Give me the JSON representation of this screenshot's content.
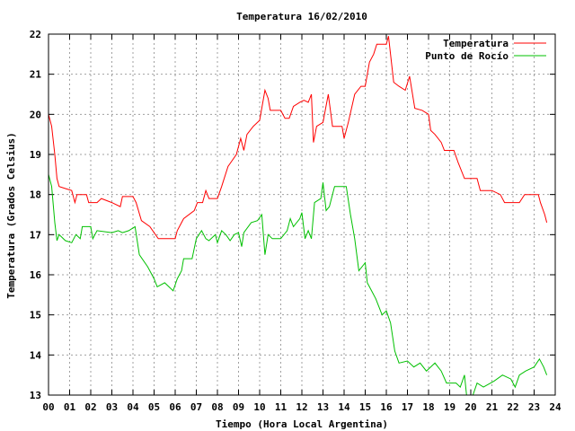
{
  "chart_data": {
    "type": "line",
    "title": "Temperatura 16/02/2010",
    "xlabel": "Tiempo (Hora Local Argentina)",
    "ylabel": "Temperatura (Grados Celsius)",
    "xlim": [
      0,
      24
    ],
    "ylim": [
      13,
      22
    ],
    "x_ticks": [
      "00",
      "01",
      "02",
      "03",
      "04",
      "05",
      "06",
      "07",
      "08",
      "09",
      "10",
      "11",
      "12",
      "13",
      "14",
      "15",
      "16",
      "17",
      "18",
      "19",
      "20",
      "21",
      "22",
      "23",
      "24"
    ],
    "y_ticks": [
      "13",
      "14",
      "15",
      "16",
      "17",
      "18",
      "19",
      "20",
      "21",
      "22"
    ],
    "grid": true,
    "legend_position": "top-right",
    "series": [
      {
        "name": "Temperatura",
        "color": "#ff0000",
        "points": [
          [
            0.0,
            20.0
          ],
          [
            0.15,
            19.7
          ],
          [
            0.3,
            19.0
          ],
          [
            0.4,
            18.4
          ],
          [
            0.5,
            18.2
          ],
          [
            0.8,
            18.15
          ],
          [
            1.1,
            18.1
          ],
          [
            1.25,
            17.8
          ],
          [
            1.35,
            18.0
          ],
          [
            1.8,
            18.0
          ],
          [
            1.9,
            17.8
          ],
          [
            2.3,
            17.8
          ],
          [
            2.5,
            17.9
          ],
          [
            3.0,
            17.8
          ],
          [
            3.4,
            17.7
          ],
          [
            3.5,
            17.95
          ],
          [
            4.0,
            17.95
          ],
          [
            4.15,
            17.8
          ],
          [
            4.4,
            17.35
          ],
          [
            4.8,
            17.2
          ],
          [
            5.2,
            16.9
          ],
          [
            6.0,
            16.9
          ],
          [
            6.1,
            17.1
          ],
          [
            6.4,
            17.4
          ],
          [
            6.9,
            17.6
          ],
          [
            7.05,
            17.8
          ],
          [
            7.3,
            17.8
          ],
          [
            7.45,
            18.1
          ],
          [
            7.6,
            17.9
          ],
          [
            8.0,
            17.9
          ],
          [
            8.2,
            18.2
          ],
          [
            8.5,
            18.7
          ],
          [
            8.9,
            19.0
          ],
          [
            9.1,
            19.4
          ],
          [
            9.25,
            19.1
          ],
          [
            9.4,
            19.5
          ],
          [
            9.7,
            19.7
          ],
          [
            10.0,
            19.85
          ],
          [
            10.25,
            20.6
          ],
          [
            10.4,
            20.4
          ],
          [
            10.5,
            20.1
          ],
          [
            11.0,
            20.1
          ],
          [
            11.2,
            19.9
          ],
          [
            11.4,
            19.9
          ],
          [
            11.6,
            20.2
          ],
          [
            11.9,
            20.3
          ],
          [
            12.1,
            20.35
          ],
          [
            12.3,
            20.3
          ],
          [
            12.45,
            20.5
          ],
          [
            12.55,
            19.3
          ],
          [
            12.7,
            19.7
          ],
          [
            13.0,
            19.8
          ],
          [
            13.25,
            20.5
          ],
          [
            13.45,
            19.7
          ],
          [
            13.6,
            19.7
          ],
          [
            13.9,
            19.7
          ],
          [
            14.0,
            19.4
          ],
          [
            14.2,
            19.8
          ],
          [
            14.5,
            20.5
          ],
          [
            14.8,
            20.7
          ],
          [
            15.0,
            20.7
          ],
          [
            15.2,
            21.3
          ],
          [
            15.4,
            21.5
          ],
          [
            15.55,
            21.75
          ],
          [
            16.0,
            21.75
          ],
          [
            16.1,
            21.95
          ],
          [
            16.35,
            20.8
          ],
          [
            16.6,
            20.7
          ],
          [
            16.9,
            20.6
          ],
          [
            17.1,
            20.95
          ],
          [
            17.35,
            20.15
          ],
          [
            17.7,
            20.1
          ],
          [
            18.0,
            20.0
          ],
          [
            18.1,
            19.6
          ],
          [
            18.3,
            19.5
          ],
          [
            18.6,
            19.3
          ],
          [
            18.75,
            19.1
          ],
          [
            19.2,
            19.1
          ],
          [
            19.4,
            18.8
          ],
          [
            19.7,
            18.4
          ],
          [
            20.3,
            18.4
          ],
          [
            20.45,
            18.1
          ],
          [
            21.0,
            18.1
          ],
          [
            21.4,
            18.0
          ],
          [
            21.6,
            17.8
          ],
          [
            22.1,
            17.8
          ],
          [
            22.3,
            17.8
          ],
          [
            22.55,
            18.0
          ],
          [
            22.9,
            18.0
          ],
          [
            23.2,
            18.0
          ],
          [
            23.3,
            17.8
          ],
          [
            23.5,
            17.5
          ],
          [
            23.6,
            17.3
          ]
        ]
      },
      {
        "name": "Punto de Rocío",
        "color": "#00c000",
        "points": [
          [
            0.0,
            18.5
          ],
          [
            0.15,
            18.2
          ],
          [
            0.3,
            17.3
          ],
          [
            0.4,
            16.85
          ],
          [
            0.5,
            17.0
          ],
          [
            0.8,
            16.85
          ],
          [
            1.1,
            16.8
          ],
          [
            1.3,
            17.0
          ],
          [
            1.5,
            16.9
          ],
          [
            1.6,
            17.2
          ],
          [
            2.0,
            17.2
          ],
          [
            2.1,
            16.9
          ],
          [
            2.3,
            17.1
          ],
          [
            3.0,
            17.05
          ],
          [
            3.3,
            17.1
          ],
          [
            3.5,
            17.05
          ],
          [
            3.8,
            17.1
          ],
          [
            4.1,
            17.2
          ],
          [
            4.3,
            16.5
          ],
          [
            4.7,
            16.2
          ],
          [
            5.0,
            15.9
          ],
          [
            5.15,
            15.7
          ],
          [
            5.5,
            15.8
          ],
          [
            5.9,
            15.6
          ],
          [
            6.1,
            15.9
          ],
          [
            6.3,
            16.1
          ],
          [
            6.4,
            16.4
          ],
          [
            6.8,
            16.4
          ],
          [
            7.0,
            16.9
          ],
          [
            7.25,
            17.1
          ],
          [
            7.45,
            16.9
          ],
          [
            7.6,
            16.85
          ],
          [
            7.9,
            17.0
          ],
          [
            8.0,
            16.8
          ],
          [
            8.2,
            17.1
          ],
          [
            8.4,
            17.0
          ],
          [
            8.6,
            16.85
          ],
          [
            8.8,
            17.0
          ],
          [
            9.0,
            17.05
          ],
          [
            9.15,
            16.7
          ],
          [
            9.25,
            17.05
          ],
          [
            9.6,
            17.3
          ],
          [
            9.9,
            17.35
          ],
          [
            10.1,
            17.5
          ],
          [
            10.25,
            16.5
          ],
          [
            10.4,
            17.0
          ],
          [
            10.6,
            16.9
          ],
          [
            11.0,
            16.9
          ],
          [
            11.3,
            17.1
          ],
          [
            11.45,
            17.4
          ],
          [
            11.6,
            17.2
          ],
          [
            11.9,
            17.4
          ],
          [
            12.0,
            17.55
          ],
          [
            12.15,
            16.9
          ],
          [
            12.3,
            17.1
          ],
          [
            12.45,
            16.9
          ],
          [
            12.6,
            17.8
          ],
          [
            12.9,
            17.9
          ],
          [
            13.0,
            18.3
          ],
          [
            13.15,
            17.6
          ],
          [
            13.3,
            17.7
          ],
          [
            13.55,
            18.2
          ],
          [
            14.1,
            18.2
          ],
          [
            14.3,
            17.5
          ],
          [
            14.5,
            16.9
          ],
          [
            14.7,
            16.1
          ],
          [
            15.0,
            16.3
          ],
          [
            15.1,
            15.8
          ],
          [
            15.3,
            15.6
          ],
          [
            15.5,
            15.4
          ],
          [
            15.8,
            15.0
          ],
          [
            16.0,
            15.1
          ],
          [
            16.2,
            14.8
          ],
          [
            16.4,
            14.1
          ],
          [
            16.6,
            13.8
          ],
          [
            17.0,
            13.85
          ],
          [
            17.3,
            13.7
          ],
          [
            17.6,
            13.8
          ],
          [
            17.9,
            13.6
          ],
          [
            18.3,
            13.8
          ],
          [
            18.6,
            13.6
          ],
          [
            18.85,
            13.3
          ],
          [
            19.3,
            13.3
          ],
          [
            19.5,
            13.2
          ],
          [
            19.7,
            13.5
          ],
          [
            19.8,
            13.0
          ],
          [
            20.1,
            13.0
          ],
          [
            20.3,
            13.3
          ],
          [
            20.6,
            13.2
          ],
          [
            21.1,
            13.35
          ],
          [
            21.5,
            13.5
          ],
          [
            21.9,
            13.4
          ],
          [
            22.1,
            13.2
          ],
          [
            22.3,
            13.5
          ],
          [
            22.6,
            13.6
          ],
          [
            23.0,
            13.7
          ],
          [
            23.25,
            13.9
          ],
          [
            23.45,
            13.7
          ],
          [
            23.6,
            13.5
          ]
        ]
      }
    ]
  }
}
